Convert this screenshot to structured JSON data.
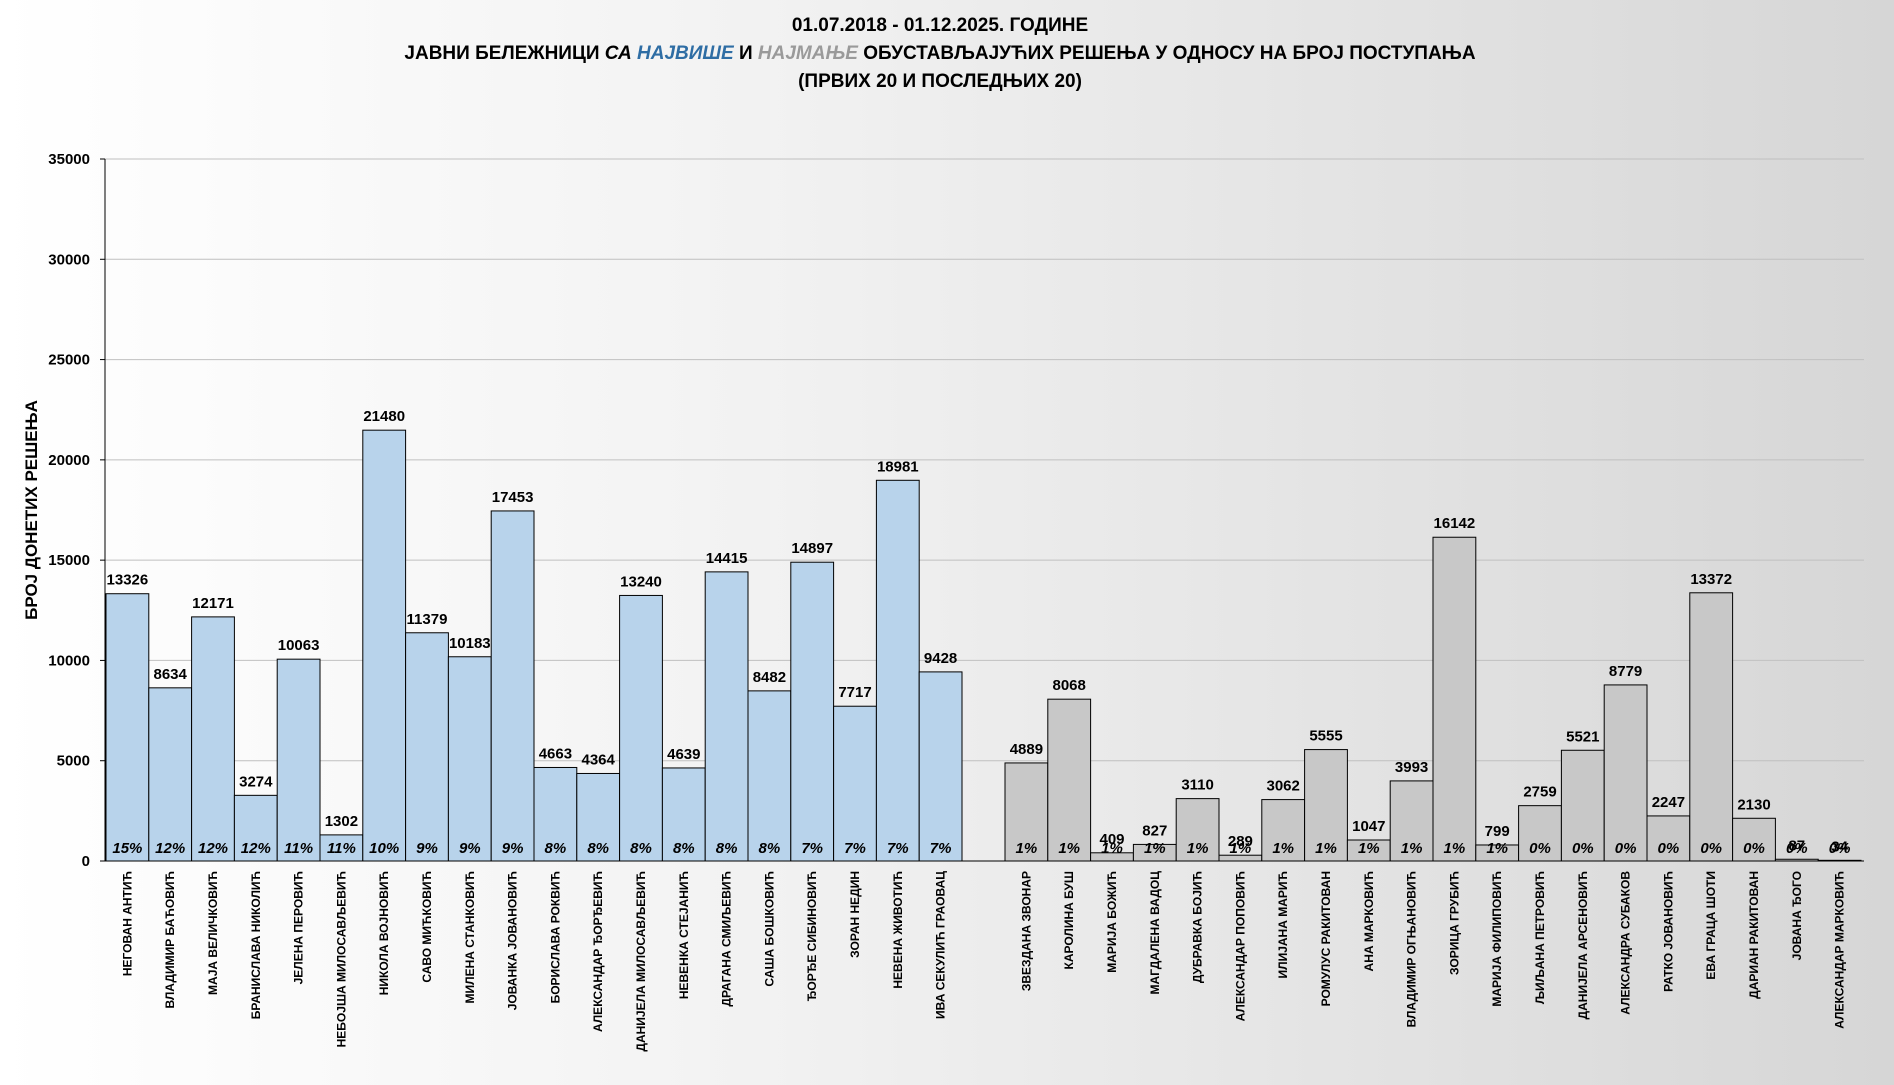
{
  "chart_data": {
    "type": "bar",
    "title": {
      "line1": "01.07.2018 - 01.12.2025. ГОДИНЕ",
      "line2_part1": "ЈАВНИ БЕЛЕЖНИЦИ ",
      "line2_part2": "СА ",
      "line2_part3": "НАЈВИШЕ",
      "line2_part4": " И ",
      "line2_part5": "НАЈМАЊЕ",
      "line2_part6": " ОБУСТАВЉАЈУЋИХ РЕШЕЊА У ОДНОСУ НА БРОЈ ПОСТУПАЊА",
      "line3": "(ПРВИХ 20 И ПОСЛЕДЊИХ 20)"
    },
    "ylabel": "БРОЈ ДОНЕТИХ РЕШЕЊА",
    "xlabel": "",
    "ylim": [
      0,
      35000
    ],
    "yticks": [
      0,
      5000,
      10000,
      15000,
      20000,
      25000,
      30000,
      35000
    ],
    "grid": true,
    "colors": {
      "top": "#b8d3eb",
      "bottom": "#c8c8c8",
      "edge": "#000000",
      "grid": "#c0c0c0"
    },
    "series": [
      {
        "name": "top20",
        "categories": [
          "НЕГОВАН АНТИЋ",
          "ВЛАДИМИР БАЋОВИЋ",
          "МАЈА ВЕЛИЧКОВИЋ",
          "БРАНИСЛАВА НИКОЛИЋ",
          "ЈЕЛЕНА ПЕРОВИЋ",
          "НЕБОЈША МИЛОСАВЉЕВИЋ",
          "НИКОЛА ВОЈНОВИЋ",
          "САВО МИЋКОВИЋ",
          "МИЛЕНА СТАНКОВИЋ",
          "ЈОВАНКА ЈОВАНОВИЋ",
          "БОРИСЛАВА РОКВИЋ",
          "АЛЕКСАНДАР ЂОРЂЕВИЋ",
          "ДАНИЈЕЛА МИЛОСАВЉЕВИЋ",
          "НЕВЕНКА СТЕЈАНИЋ",
          "ДРАГАНА СМИЉЕВИЋ",
          "САША БОШКОВИЋ",
          "ЂОРЂЕ СИБИНОВИЋ",
          "ЗОРАН НЕДИН",
          "НЕВЕНА ЖИВОТИЋ",
          "ИВА СЕКУЛИЋ ГРАОВАЦ"
        ],
        "values": [
          13326,
          8634,
          12171,
          3274,
          10063,
          1302,
          21480,
          11379,
          10183,
          17453,
          4663,
          4364,
          13240,
          4639,
          14415,
          8482,
          14897,
          7717,
          18981,
          9428
        ],
        "percent_labels": [
          "15%",
          "12%",
          "12%",
          "12%",
          "11%",
          "11%",
          "10%",
          "9%",
          "9%",
          "9%",
          "8%",
          "8%",
          "8%",
          "8%",
          "8%",
          "8%",
          "7%",
          "7%",
          "7%",
          "7%"
        ]
      },
      {
        "name": "bottom20",
        "categories": [
          "ЗВЕЗДАНА ЗВОНАР",
          "КАРОЛИНА БУШ",
          "МАРИЈА БОЖИЋ",
          "МАГДАЛЕНА ВАДОЦ",
          "ДУБРАВКА БОЈИЋ",
          "АЛЕКСАНДАР ПОПОВИЋ",
          "ИЛИЈАНА МАРИЋ",
          "РОМУЛУС РАКИТОВАН",
          "АНА МАРКОВИЋ",
          "ВЛАДИМИР ОГЊАНОВИЋ",
          "ЗОРИЦА ГРУБИЋ",
          "МАРИЈА ФИЛИПОВИЋ",
          "ЉИЉАНА ПЕТРОВИЋ",
          "ДАНИЈЕЛА АРСЕНОВИЋ",
          "АЛЕКСАНДРА СУБАКОВ",
          "РАТКО ЈОВАНОВИЋ",
          "ЕВА ГРАЦА ШОТИ",
          "ДАРИАН РАКИТОВАН",
          "ЈОВАНА ЂОГО",
          "АЛЕКСАНДАР МАРКОВИЋ"
        ],
        "values": [
          4889,
          8068,
          409,
          827,
          3110,
          289,
          3062,
          5555,
          1047,
          3993,
          16142,
          799,
          2759,
          5521,
          8779,
          2247,
          13372,
          2130,
          87,
          34
        ],
        "percent_labels": [
          "1%",
          "1%",
          "1%",
          "1%",
          "1%",
          "1%",
          "1%",
          "1%",
          "1%",
          "1%",
          "1%",
          "1%",
          "0%",
          "0%",
          "0%",
          "0%",
          "0%",
          "0%",
          "0%",
          "0%"
        ]
      }
    ]
  }
}
